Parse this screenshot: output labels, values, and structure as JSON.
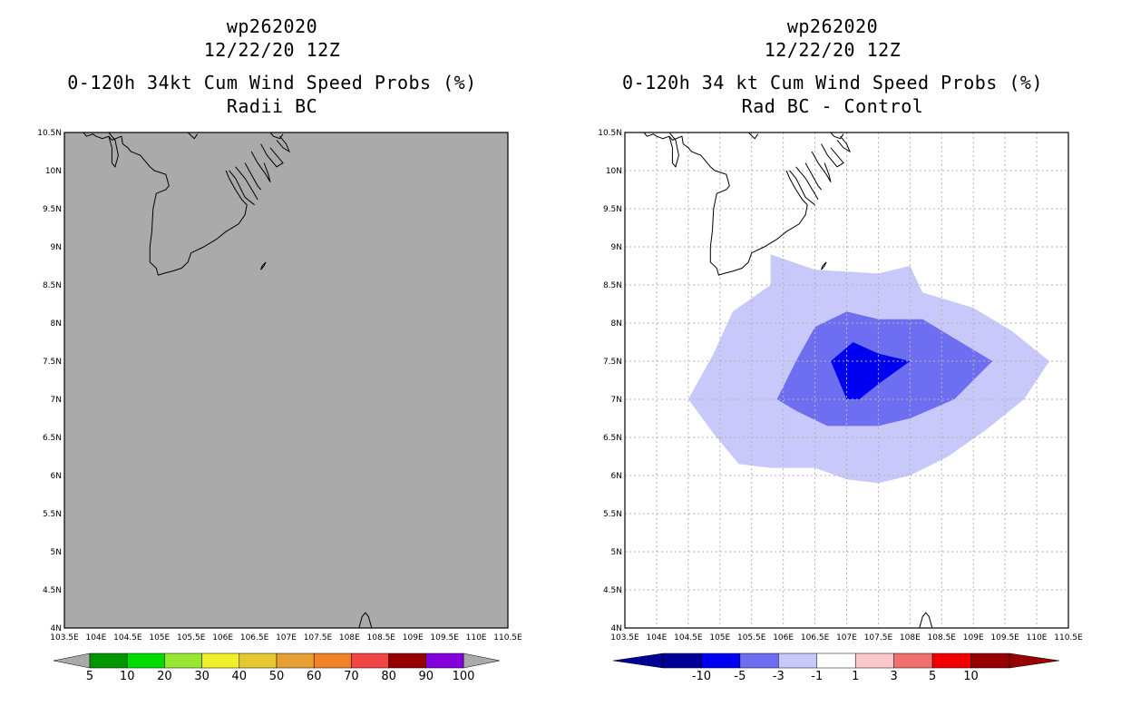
{
  "left_panel": {
    "storm_id": "wp262020",
    "datetime": "12/22/20 12Z",
    "product": "0-120h 34kt Cum Wind Speed Probs (%)",
    "subtitle": "Radii BC",
    "background_color": "#aaaaaa"
  },
  "right_panel": {
    "storm_id": "wp262020",
    "datetime": "12/22/20 12Z",
    "product": "0-120h 34 kt Cum Wind Speed Probs (%)",
    "subtitle": "Rad BC - Control",
    "background_color": "#ffffff"
  },
  "map_axes": {
    "lon_labels": [
      "103.5E",
      "104E",
      "104.5E",
      "105E",
      "105.5E",
      "106E",
      "106.5E",
      "107E",
      "107.5E",
      "108E",
      "108.5E",
      "109E",
      "109.5E",
      "110E",
      "110.5E"
    ],
    "lat_labels": [
      "10.5N",
      "10N",
      "9.5N",
      "9N",
      "8.5N",
      "8N",
      "7.5N",
      "7N",
      "6.5N",
      "6N",
      "5.5N",
      "5N",
      "4.5N",
      "4N"
    ],
    "lon_range": [
      103.5,
      110.5
    ],
    "lat_range": [
      4.0,
      10.5
    ]
  },
  "left_colorbar": {
    "colors": [
      "#009600",
      "#00dc00",
      "#96e632",
      "#f0f028",
      "#e6c832",
      "#e6a032",
      "#f08228",
      "#f04646",
      "#960000",
      "#8200dc"
    ],
    "labels": [
      "5",
      "10",
      "20",
      "30",
      "40",
      "50",
      "60",
      "70",
      "80",
      "90",
      "100"
    ]
  },
  "right_colorbar": {
    "colors": [
      "#000096",
      "#0000f0",
      "#6e6ef0",
      "#c8c8fa",
      "#ffffff",
      "#fac8c8",
      "#f07070",
      "#f00000",
      "#960000"
    ],
    "labels": [
      "-10",
      "-5",
      "-3",
      "-1",
      "1",
      "3",
      "5",
      "10"
    ]
  },
  "contours": {
    "units": "percent difference",
    "levels": [
      {
        "level": "-1",
        "color": "#c8c8fa",
        "polygon": [
          [
            105.8,
            8.9
          ],
          [
            106.5,
            8.7
          ],
          [
            107.5,
            8.65
          ],
          [
            108.0,
            8.75
          ],
          [
            108.2,
            8.4
          ],
          [
            109.0,
            8.2
          ],
          [
            109.6,
            7.9
          ],
          [
            110.2,
            7.5
          ],
          [
            109.8,
            7.0
          ],
          [
            109.2,
            6.6
          ],
          [
            108.6,
            6.25
          ],
          [
            108.0,
            6.0
          ],
          [
            107.5,
            5.9
          ],
          [
            107.0,
            5.95
          ],
          [
            106.5,
            6.1
          ],
          [
            105.8,
            6.1
          ],
          [
            105.3,
            6.15
          ],
          [
            104.9,
            6.55
          ],
          [
            104.5,
            7.0
          ],
          [
            104.9,
            7.6
          ],
          [
            105.2,
            8.15
          ],
          [
            105.8,
            8.5
          ]
        ]
      },
      {
        "level": "-3",
        "color": "#6e6ef0",
        "polygon": [
          [
            106.5,
            7.95
          ],
          [
            107.0,
            8.15
          ],
          [
            107.5,
            8.05
          ],
          [
            108.2,
            8.05
          ],
          [
            109.0,
            7.65
          ],
          [
            109.3,
            7.5
          ],
          [
            108.7,
            7.0
          ],
          [
            108.0,
            6.75
          ],
          [
            107.5,
            6.65
          ],
          [
            106.7,
            6.65
          ],
          [
            106.2,
            6.85
          ],
          [
            105.9,
            7.0
          ],
          [
            106.2,
            7.5
          ]
        ]
      },
      {
        "level": "-5",
        "color": "#0000f0",
        "polygon": [
          [
            106.75,
            7.5
          ],
          [
            107.1,
            7.75
          ],
          [
            107.5,
            7.6
          ],
          [
            108.0,
            7.5
          ],
          [
            107.5,
            7.2
          ],
          [
            107.2,
            7.0
          ],
          [
            107.0,
            7.0
          ]
        ]
      }
    ]
  }
}
